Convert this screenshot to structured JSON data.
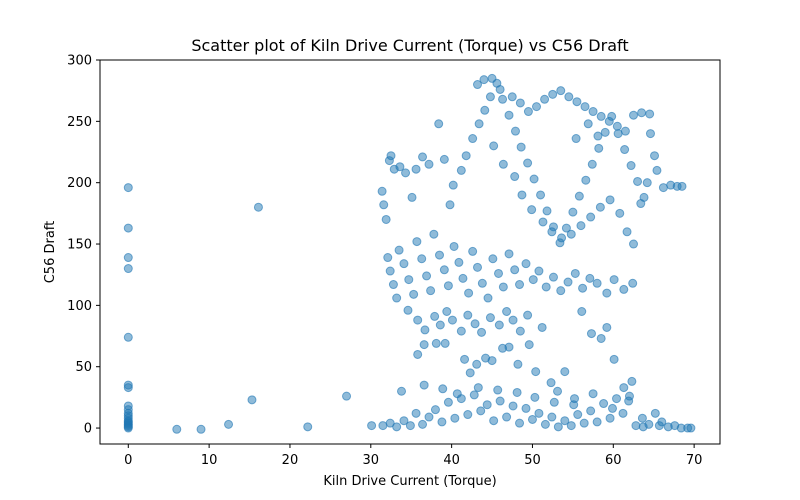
{
  "chart_data": {
    "type": "scatter",
    "title": "Scatter plot of Kiln Drive Current (Torque) vs C56 Draft",
    "xlabel": "Kiln Drive Current (Torque)",
    "ylabel": "C56 Draft",
    "xlim": [
      -3.5,
      73.2
    ],
    "ylim": [
      -13,
      300
    ],
    "xticks": [
      0,
      10,
      20,
      30,
      40,
      50,
      60,
      70
    ],
    "yticks": [
      0,
      50,
      100,
      150,
      200,
      250,
      300
    ],
    "grid": false,
    "legend": "none",
    "marker_color": "#1f77b4",
    "marker_alpha": 0.5,
    "series": [
      {
        "points": [
          [
            0,
            196
          ],
          [
            0,
            163
          ],
          [
            0,
            139
          ],
          [
            0,
            130
          ],
          [
            0,
            74
          ],
          [
            0,
            35
          ],
          [
            0,
            33
          ],
          [
            0,
            18
          ],
          [
            0,
            15
          ],
          [
            0,
            12
          ],
          [
            0,
            10
          ],
          [
            0,
            8
          ],
          [
            0,
            6
          ],
          [
            0,
            5
          ],
          [
            0,
            4
          ],
          [
            0,
            3
          ],
          [
            0,
            2
          ],
          [
            0,
            1
          ],
          [
            0,
            0
          ],
          [
            6,
            -1
          ],
          [
            9,
            -1
          ],
          [
            12.4,
            3
          ],
          [
            15.3,
            23
          ],
          [
            16.1,
            180
          ],
          [
            22.2,
            1
          ],
          [
            27,
            26
          ],
          [
            30.1,
            2
          ],
          [
            31.4,
            193
          ],
          [
            31.6,
            182
          ],
          [
            31.9,
            170
          ],
          [
            32.3,
            218
          ],
          [
            32.5,
            222
          ],
          [
            32.9,
            211
          ],
          [
            33.6,
            213
          ],
          [
            34.3,
            208
          ],
          [
            35.1,
            188
          ],
          [
            35.6,
            211
          ],
          [
            36.4,
            221
          ],
          [
            37.2,
            215
          ],
          [
            38.4,
            248
          ],
          [
            39.1,
            219
          ],
          [
            39.8,
            182
          ],
          [
            40.2,
            198
          ],
          [
            32.1,
            139
          ],
          [
            32.4,
            128
          ],
          [
            32.8,
            117
          ],
          [
            33.2,
            106
          ],
          [
            33.5,
            145
          ],
          [
            34.1,
            134
          ],
          [
            34.7,
            121
          ],
          [
            35.3,
            109
          ],
          [
            35.7,
            152
          ],
          [
            36.3,
            138
          ],
          [
            36.9,
            124
          ],
          [
            37.4,
            112
          ],
          [
            37.8,
            158
          ],
          [
            38.5,
            141
          ],
          [
            39.1,
            129
          ],
          [
            39.6,
            116
          ],
          [
            40.3,
            148
          ],
          [
            40.9,
            135
          ],
          [
            41.4,
            122
          ],
          [
            42.1,
            110
          ],
          [
            42.6,
            144
          ],
          [
            43.2,
            131
          ],
          [
            43.8,
            118
          ],
          [
            44.5,
            106
          ],
          [
            45.1,
            138
          ],
          [
            45.8,
            126
          ],
          [
            46.4,
            115
          ],
          [
            47.1,
            142
          ],
          [
            47.8,
            129
          ],
          [
            48.4,
            117
          ],
          [
            49.2,
            134
          ],
          [
            50.1,
            121
          ],
          [
            50.8,
            128
          ],
          [
            51.7,
            115
          ],
          [
            52.6,
            123
          ],
          [
            53.5,
            112
          ],
          [
            54.4,
            119
          ],
          [
            55.3,
            126
          ],
          [
            56.2,
            114
          ],
          [
            57.1,
            122
          ],
          [
            58.0,
            118
          ],
          [
            59.2,
            110
          ],
          [
            60.1,
            121
          ],
          [
            61.3,
            113
          ],
          [
            62.4,
            118
          ],
          [
            34.6,
            96
          ],
          [
            35.8,
            88
          ],
          [
            36.7,
            80
          ],
          [
            37.9,
            91
          ],
          [
            38.6,
            84
          ],
          [
            39.4,
            95
          ],
          [
            40.1,
            88
          ],
          [
            41.2,
            79
          ],
          [
            42.0,
            92
          ],
          [
            42.9,
            85
          ],
          [
            43.7,
            78
          ],
          [
            44.8,
            90
          ],
          [
            45.9,
            84
          ],
          [
            46.8,
            95
          ],
          [
            47.6,
            88
          ],
          [
            48.5,
            79
          ],
          [
            49.4,
            92
          ],
          [
            35.8,
            60
          ],
          [
            36.6,
            68
          ],
          [
            38.1,
            69
          ],
          [
            39.2,
            69
          ],
          [
            41.6,
            56
          ],
          [
            42.3,
            45
          ],
          [
            43.1,
            52
          ],
          [
            44.2,
            57
          ],
          [
            45.0,
            55
          ],
          [
            46.3,
            65
          ],
          [
            47.1,
            66
          ],
          [
            48.2,
            52
          ],
          [
            49.6,
            68
          ],
          [
            50.4,
            46
          ],
          [
            51.2,
            82
          ],
          [
            52.3,
            37
          ],
          [
            53.1,
            30
          ],
          [
            54.0,
            46
          ],
          [
            55.2,
            24
          ],
          [
            56.1,
            95
          ],
          [
            57.3,
            77
          ],
          [
            58.5,
            73
          ],
          [
            59.2,
            82
          ],
          [
            60.1,
            56
          ],
          [
            61.3,
            33
          ],
          [
            62.3,
            38
          ],
          [
            41.2,
            210
          ],
          [
            41.8,
            222
          ],
          [
            42.6,
            236
          ],
          [
            43.4,
            248
          ],
          [
            44.1,
            259
          ],
          [
            44.8,
            270
          ],
          [
            45.6,
            281
          ],
          [
            46.3,
            268
          ],
          [
            47.1,
            255
          ],
          [
            47.9,
            242
          ],
          [
            48.6,
            229
          ],
          [
            49.4,
            216
          ],
          [
            50.2,
            203
          ],
          [
            51.0,
            190
          ],
          [
            51.8,
            177
          ],
          [
            52.6,
            164
          ],
          [
            53.4,
            151
          ],
          [
            54.2,
            163
          ],
          [
            55.0,
            176
          ],
          [
            55.8,
            189
          ],
          [
            56.6,
            202
          ],
          [
            57.4,
            215
          ],
          [
            58.2,
            228
          ],
          [
            59.0,
            241
          ],
          [
            59.8,
            254
          ],
          [
            60.6,
            240
          ],
          [
            61.4,
            227
          ],
          [
            62.2,
            214
          ],
          [
            63.0,
            201
          ],
          [
            63.8,
            188
          ],
          [
            64.6,
            240
          ],
          [
            65.4,
            210
          ],
          [
            66.2,
            196
          ],
          [
            67.1,
            198
          ],
          [
            67.9,
            197
          ],
          [
            68.5,
            197
          ],
          [
            43.2,
            280
          ],
          [
            44.0,
            284
          ],
          [
            45.0,
            285
          ],
          [
            46.0,
            276
          ],
          [
            47.5,
            270
          ],
          [
            48.5,
            265
          ],
          [
            49.5,
            258
          ],
          [
            50.5,
            262
          ],
          [
            51.5,
            268
          ],
          [
            52.5,
            272
          ],
          [
            53.5,
            275
          ],
          [
            54.5,
            270
          ],
          [
            55.5,
            266
          ],
          [
            56.5,
            262
          ],
          [
            57.5,
            258
          ],
          [
            58.5,
            254
          ],
          [
            59.5,
            250
          ],
          [
            60.5,
            246
          ],
          [
            61.5,
            242
          ],
          [
            62.5,
            255
          ],
          [
            63.5,
            257
          ],
          [
            64.5,
            256
          ],
          [
            45.2,
            230
          ],
          [
            46.4,
            215
          ],
          [
            47.8,
            205
          ],
          [
            48.7,
            190
          ],
          [
            49.9,
            178
          ],
          [
            51.3,
            168
          ],
          [
            52.4,
            160
          ],
          [
            53.6,
            155
          ],
          [
            54.8,
            158
          ],
          [
            56.0,
            165
          ],
          [
            57.2,
            172
          ],
          [
            58.4,
            180
          ],
          [
            59.6,
            186
          ],
          [
            60.8,
            175
          ],
          [
            61.7,
            160
          ],
          [
            62.5,
            150
          ],
          [
            63.4,
            183
          ],
          [
            64.2,
            200
          ],
          [
            65.1,
            222
          ],
          [
            55.4,
            236
          ],
          [
            56.9,
            248
          ],
          [
            58.1,
            238
          ],
          [
            31.5,
            2
          ],
          [
            32.4,
            4
          ],
          [
            33.2,
            1
          ],
          [
            34.1,
            6
          ],
          [
            34.9,
            2
          ],
          [
            35.6,
            12
          ],
          [
            36.4,
            3
          ],
          [
            37.2,
            9
          ],
          [
            38.0,
            15
          ],
          [
            38.8,
            5
          ],
          [
            39.6,
            21
          ],
          [
            40.4,
            8
          ],
          [
            41.2,
            24
          ],
          [
            42.0,
            11
          ],
          [
            42.8,
            27
          ],
          [
            43.6,
            14
          ],
          [
            44.4,
            19
          ],
          [
            45.2,
            6
          ],
          [
            46.0,
            22
          ],
          [
            46.8,
            9
          ],
          [
            47.6,
            18
          ],
          [
            48.4,
            4
          ],
          [
            49.2,
            16
          ],
          [
            50.0,
            7
          ],
          [
            50.8,
            12
          ],
          [
            51.6,
            3
          ],
          [
            52.4,
            9
          ],
          [
            53.2,
            1
          ],
          [
            54.0,
            6
          ],
          [
            54.8,
            2
          ],
          [
            55.6,
            11
          ],
          [
            56.4,
            4
          ],
          [
            57.2,
            14
          ],
          [
            58.0,
            5
          ],
          [
            58.8,
            20
          ],
          [
            59.6,
            8
          ],
          [
            60.4,
            24
          ],
          [
            61.2,
            12
          ],
          [
            62.0,
            26
          ],
          [
            62.8,
            2
          ],
          [
            63.6,
            8
          ],
          [
            64.4,
            3
          ],
          [
            65.2,
            12
          ],
          [
            66.0,
            5
          ],
          [
            66.8,
            1
          ],
          [
            67.6,
            2
          ],
          [
            68.4,
            0
          ],
          [
            69.2,
            0
          ],
          [
            69.6,
            0
          ],
          [
            33.8,
            30
          ],
          [
            36.6,
            35
          ],
          [
            38.9,
            32
          ],
          [
            40.7,
            28
          ],
          [
            43.3,
            33
          ],
          [
            45.7,
            31
          ],
          [
            48.1,
            29
          ],
          [
            50.3,
            25
          ],
          [
            52.7,
            21
          ],
          [
            55.1,
            19
          ],
          [
            57.5,
            28
          ],
          [
            59.9,
            16
          ],
          [
            61.9,
            22
          ],
          [
            63.7,
            1
          ],
          [
            65.7,
            2
          ]
        ]
      }
    ]
  }
}
